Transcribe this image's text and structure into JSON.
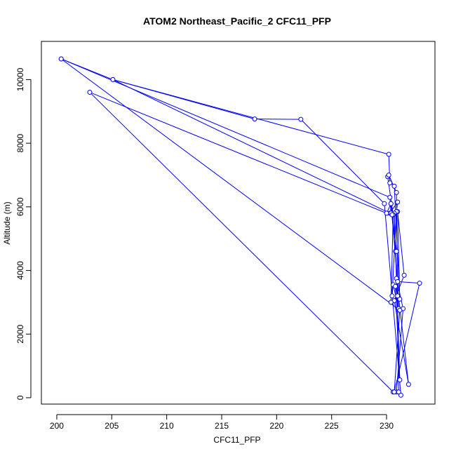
{
  "chart_data": {
    "type": "line",
    "title": "ATOM2 Northeast_Pacific_2 CFC11_PFP",
    "xlabel": "CFC11_PFP",
    "ylabel": "Altitude (m)",
    "xlim": [
      198.6,
      234.4
    ],
    "ylim": [
      -200,
      11200
    ],
    "x_ticks": [
      200,
      205,
      210,
      215,
      220,
      225,
      230
    ],
    "y_ticks": [
      0,
      2000,
      4000,
      6000,
      8000,
      10000
    ],
    "x_tick_labels": [
      "200",
      "205",
      "210",
      "215",
      "220",
      "225",
      "230"
    ],
    "y_tick_labels": [
      "0",
      "2000",
      "4000",
      "6000",
      "8000",
      "10000"
    ],
    "grid": false,
    "colors": {
      "series": "#0000ff",
      "axes": "#000000"
    },
    "series": [
      {
        "marker": "open-circle",
        "x": [
          200.4,
          205.1,
          218.0,
          222.2,
          229.8,
          231.3,
          230.9,
          231.5,
          230.9,
          232.0,
          230.7,
          231.6,
          231.0,
          231.2,
          230.7,
          230.3,
          230.2,
          205.1,
          230.3,
          231.0,
          230.9,
          230.5,
          230.6,
          231.1,
          230.8,
          230.7,
          231.2,
          230.8,
          231.0,
          230.4,
          230.6,
          230.1,
          230.2,
          230.9,
          231.1,
          230.6,
          203.0,
          230.0,
          230.4,
          231.0,
          233.0,
          230.7,
          231.2,
          200.4,
          230.3,
          230.4,
          230.5,
          230.9,
          230.4
        ],
        "y": [
          10650,
          10000,
          8760,
          8750,
          6100,
          80,
          180,
          2800,
          3750,
          420,
          3050,
          3850,
          5850,
          3100,
          6650,
          6750,
          7650,
          10000,
          5800,
          6150,
          5850,
          3200,
          3550,
          2800,
          4600,
          5800,
          560,
          3500,
          3200,
          3000,
          5750,
          6950,
          7000,
          6450,
          180,
          180,
          9600,
          5800,
          6100,
          3650,
          3600,
          180,
          2750,
          10650,
          6300,
          5800,
          5750,
          4600,
          6100
        ]
      }
    ]
  }
}
